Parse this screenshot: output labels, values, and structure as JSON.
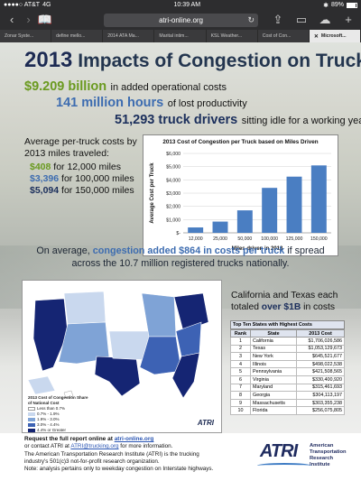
{
  "status_bar": {
    "carrier": "●●●●○ AT&T",
    "network": "4G",
    "time": "10:39 AM",
    "battery": "89%"
  },
  "browser": {
    "url": "atri-online.org",
    "tabs": [
      {
        "label": "Zonar Syste...",
        "active": false
      },
      {
        "label": "define mello...",
        "active": false
      },
      {
        "label": "2014 ATA Ma...",
        "active": false
      },
      {
        "label": "Marital intim...",
        "active": false
      },
      {
        "label": "KSL Weather...",
        "active": false
      },
      {
        "label": "Cost of Con...",
        "active": false
      },
      {
        "label": "Microsoft...",
        "active": true
      }
    ]
  },
  "headline": {
    "year": "2013",
    "rest": "Impacts of Congestion on Trucking"
  },
  "stats": {
    "s1_value": "$9.209 billion",
    "s1_text": "in added operational costs",
    "s2_value": "141 million hours",
    "s2_text": "of lost productivity",
    "s3_value": "51,293 truck drivers",
    "s3_text": "sitting idle for a working year"
  },
  "avg": {
    "intro_line1": "Average per-truck costs by",
    "intro_line2": "2013 miles traveled:",
    "r1_value": "$408",
    "r1_text": "for 12,000 miles",
    "r2_value": "$3,396",
    "r2_text": "for 100,000 miles",
    "r3_value": "$5,094",
    "r3_text": "for 150,000 miles"
  },
  "chart_data": {
    "type": "bar",
    "title": "2013 Cost of Congestion per Truck based on Miles Driven",
    "xlabel": "Miles driven in 2013",
    "ylabel": "Average Cost per Truck",
    "categories": [
      "12,000",
      "25,000",
      "50,000",
      "100,000",
      "125,000",
      "150,000"
    ],
    "values": [
      408,
      849,
      1698,
      3396,
      4245,
      5094
    ],
    "ylim": [
      0,
      6000
    ],
    "yticks": [
      "$-",
      "$1,000",
      "$2,000",
      "$3,000",
      "$4,000",
      "$5,000",
      "$6,000"
    ],
    "bar_color": "#4a7ec2",
    "grid": true
  },
  "mid_text": {
    "pre": "On average, ",
    "highlight": "congestion added $864 in costs per truck",
    "post": " if spread across the 10.7 million registered trucks nationally."
  },
  "map": {
    "title": "2013 Cost of Congestion Share of National Cost",
    "legend": [
      "Less than 0.7%",
      "0.7% - 1.9%",
      "1.9% - 3.0%",
      "3.0% - 4.4%",
      "4.4% or Greater"
    ],
    "legend_colors": [
      "#ffffff",
      "#c9d8ee",
      "#7fa3d6",
      "#3d62b4",
      "#152573"
    ],
    "logo": "ATRI"
  },
  "tx_text": {
    "pre": "California and Texas each totaled ",
    "highlight": "over $1B",
    "post": " in costs"
  },
  "top10": {
    "caption": "Top Ten States with Highest Costs",
    "headers": [
      "Rank",
      "State",
      "2013 Cost"
    ],
    "rows": [
      [
        "1",
        "California",
        "$1,706,026,586"
      ],
      [
        "2",
        "Texas",
        "$1,053,129,673"
      ],
      [
        "3",
        "New York",
        "$645,521,677"
      ],
      [
        "4",
        "Illinois",
        "$498,022,538"
      ],
      [
        "5",
        "Pennsylvania",
        "$421,508,565"
      ],
      [
        "6",
        "Virginia",
        "$330,400,920"
      ],
      [
        "7",
        "Maryland",
        "$315,461,693"
      ],
      [
        "8",
        "Georgia",
        "$304,113,197"
      ],
      [
        "9",
        "Massachusetts",
        "$303,355,238"
      ],
      [
        "10",
        "Florida",
        "$256,075,805"
      ]
    ]
  },
  "footer": {
    "req_pre": "Request the full report online at ",
    "req_link": "atri-online.org",
    "contact_pre": "or contact ATRI at ",
    "contact_link": "ATRI@trucking.org",
    "contact_post": " for more information.",
    "line3": "The American Transportation Research Institute (ATRI) is the trucking",
    "line4": "industry's 501(c)3 not-for-profit research organization.",
    "line5": "Note: analysis pertains only to weekday congestion on Interstate highways.",
    "logo_word": "ATRI",
    "logo_full1": "American",
    "logo_full2": "Transportation",
    "logo_full3": "Research",
    "logo_full4": "Institute"
  }
}
